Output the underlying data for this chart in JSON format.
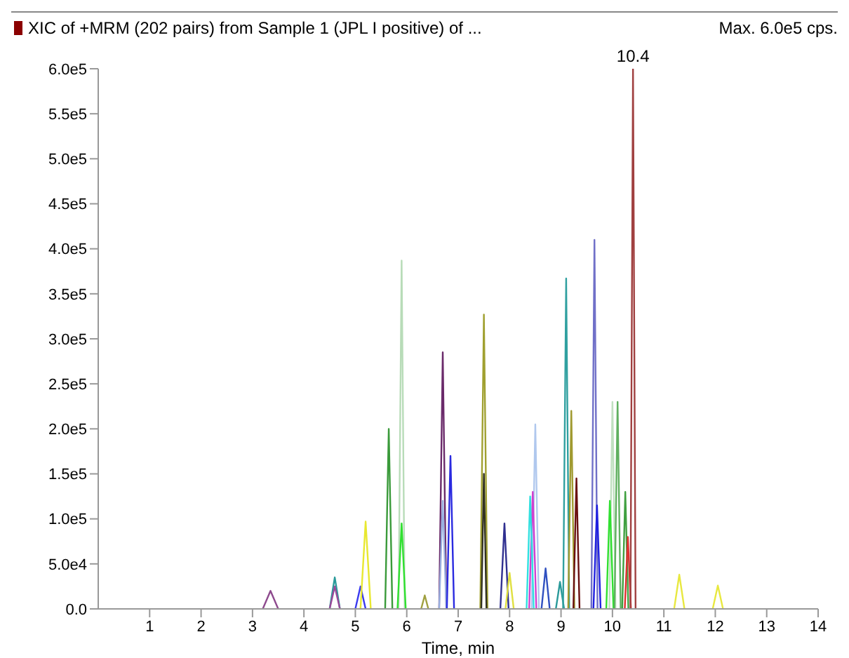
{
  "chart_data": {
    "type": "line",
    "title": "XIC of +MRM (202 pairs) from Sample 1 (JPL I positive) of ...",
    "xlabel": "Time, min",
    "annotations": [
      "Max. 6.0e5 cps.",
      {
        "text": "10.4",
        "x": 10.4,
        "y": 600000
      }
    ],
    "xlim": [
      0,
      14
    ],
    "xticks": [
      1,
      2,
      3,
      4,
      5,
      6,
      7,
      8,
      9,
      10,
      11,
      12,
      13,
      14
    ],
    "ylim": [
      0,
      600000
    ],
    "yticks": [
      {
        "value": 0,
        "label": "0.0"
      },
      {
        "value": 50000,
        "label": "5.0e4"
      },
      {
        "value": 100000,
        "label": "1.0e5"
      },
      {
        "value": 150000,
        "label": "1.5e5"
      },
      {
        "value": 200000,
        "label": "2.0e5"
      },
      {
        "value": 250000,
        "label": "2.5e5"
      },
      {
        "value": 300000,
        "label": "3.0e5"
      },
      {
        "value": 350000,
        "label": "3.5e5"
      },
      {
        "value": 400000,
        "label": "4.0e5"
      },
      {
        "value": 450000,
        "label": "4.5e5"
      },
      {
        "value": 500000,
        "label": "5.0e5"
      },
      {
        "value": 550000,
        "label": "5.5e5"
      },
      {
        "value": 600000,
        "label": "6.0e5"
      }
    ],
    "grid": false,
    "legend": false,
    "marker": "none",
    "line_style": "solid",
    "series": [
      {
        "color": "#8e4a8e",
        "x": [
          3.2,
          3.35,
          3.5
        ],
        "values": [
          0,
          20000,
          0
        ]
      },
      {
        "color": "#2a9a9a",
        "x": [
          4.5,
          4.6,
          4.7
        ],
        "values": [
          0,
          35000,
          0
        ]
      },
      {
        "color": "#9a4a9a",
        "x": [
          4.5,
          4.6,
          4.7
        ],
        "values": [
          0,
          25000,
          0
        ]
      },
      {
        "color": "#3a3aee",
        "x": [
          5.0,
          5.1,
          5.2
        ],
        "values": [
          0,
          25000,
          0
        ]
      },
      {
        "color": "#e8e830",
        "x": [
          5.1,
          5.2,
          5.3
        ],
        "values": [
          0,
          97000,
          0
        ]
      },
      {
        "color": "#3a9a3a",
        "x": [
          5.58,
          5.65,
          5.72
        ],
        "values": [
          0,
          200000,
          0
        ]
      },
      {
        "color": "#b8dcb8",
        "x": [
          5.84,
          5.9,
          5.96
        ],
        "values": [
          0,
          387000,
          0
        ]
      },
      {
        "color": "#30e030",
        "x": [
          5.82,
          5.9,
          5.98
        ],
        "values": [
          0,
          95000,
          0
        ]
      },
      {
        "color": "#a0a040",
        "x": [
          6.28,
          6.35,
          6.42
        ],
        "values": [
          0,
          15000,
          0
        ]
      },
      {
        "color": "#6a2a6a",
        "x": [
          6.63,
          6.7,
          6.77
        ],
        "values": [
          0,
          285000,
          0
        ]
      },
      {
        "color": "#9ab0e0",
        "x": [
          6.63,
          6.7,
          6.77
        ],
        "values": [
          0,
          120000,
          0
        ]
      },
      {
        "color": "#2a2ae0",
        "x": [
          6.78,
          6.85,
          6.92
        ],
        "values": [
          0,
          170000,
          0
        ]
      },
      {
        "color": "#a0a030",
        "x": [
          7.43,
          7.5,
          7.57
        ],
        "values": [
          0,
          327000,
          0
        ]
      },
      {
        "color": "#303020",
        "x": [
          7.45,
          7.5,
          7.55
        ],
        "values": [
          0,
          150000,
          0
        ]
      },
      {
        "color": "#303090",
        "x": [
          7.82,
          7.9,
          7.98
        ],
        "values": [
          0,
          95000,
          0
        ]
      },
      {
        "color": "#e0e040",
        "x": [
          7.92,
          8.0,
          8.08
        ],
        "values": [
          0,
          40000,
          0
        ]
      },
      {
        "color": "#b0c8ee",
        "x": [
          8.43,
          8.5,
          8.57
        ],
        "values": [
          0,
          205000,
          0
        ]
      },
      {
        "color": "#d040d0",
        "x": [
          8.38,
          8.45,
          8.52
        ],
        "values": [
          0,
          130000,
          0
        ]
      },
      {
        "color": "#30e0e0",
        "x": [
          8.33,
          8.4,
          8.47
        ],
        "values": [
          0,
          125000,
          0
        ]
      },
      {
        "color": "#3050c0",
        "x": [
          8.62,
          8.7,
          8.78
        ],
        "values": [
          0,
          45000,
          0
        ]
      },
      {
        "color": "#2a9a9a",
        "x": [
          8.9,
          8.98,
          9.06
        ],
        "values": [
          0,
          30000,
          0
        ]
      },
      {
        "color": "#30a0a0",
        "x": [
          9.04,
          9.1,
          9.16
        ],
        "values": [
          0,
          367000,
          0
        ]
      },
      {
        "color": "#a09a30",
        "x": [
          9.14,
          9.2,
          9.26
        ],
        "values": [
          0,
          220000,
          0
        ]
      },
      {
        "color": "#6a1010",
        "x": [
          9.24,
          9.3,
          9.36
        ],
        "values": [
          0,
          145000,
          0
        ]
      },
      {
        "color": "#7070c8",
        "x": [
          9.59,
          9.65,
          9.71
        ],
        "values": [
          0,
          410000,
          0
        ]
      },
      {
        "color": "#2020e0",
        "x": [
          9.63,
          9.7,
          9.77
        ],
        "values": [
          0,
          115000,
          0
        ]
      },
      {
        "color": "#c0e0c0",
        "x": [
          9.94,
          10.0,
          10.06
        ],
        "values": [
          0,
          230000,
          0
        ]
      },
      {
        "color": "#30e030",
        "x": [
          9.88,
          9.95,
          10.02
        ],
        "values": [
          0,
          120000,
          0
        ]
      },
      {
        "color": "#60b060",
        "x": [
          10.04,
          10.1,
          10.16
        ],
        "values": [
          0,
          230000,
          0
        ]
      },
      {
        "color": "#40a040",
        "x": [
          10.19,
          10.25,
          10.31
        ],
        "values": [
          0,
          130000,
          0
        ]
      },
      {
        "color": "#e03030",
        "x": [
          10.24,
          10.3,
          10.36
        ],
        "values": [
          0,
          80000,
          0
        ]
      },
      {
        "color": "#a04040",
        "x": [
          10.35,
          10.4,
          10.45
        ],
        "values": [
          0,
          600000,
          0
        ]
      },
      {
        "color": "#e8e840",
        "x": [
          11.2,
          11.3,
          11.4
        ],
        "values": [
          0,
          38000,
          0
        ]
      },
      {
        "color": "#e8e840",
        "x": [
          11.95,
          12.05,
          12.15
        ],
        "values": [
          0,
          26000,
          0
        ]
      }
    ]
  }
}
